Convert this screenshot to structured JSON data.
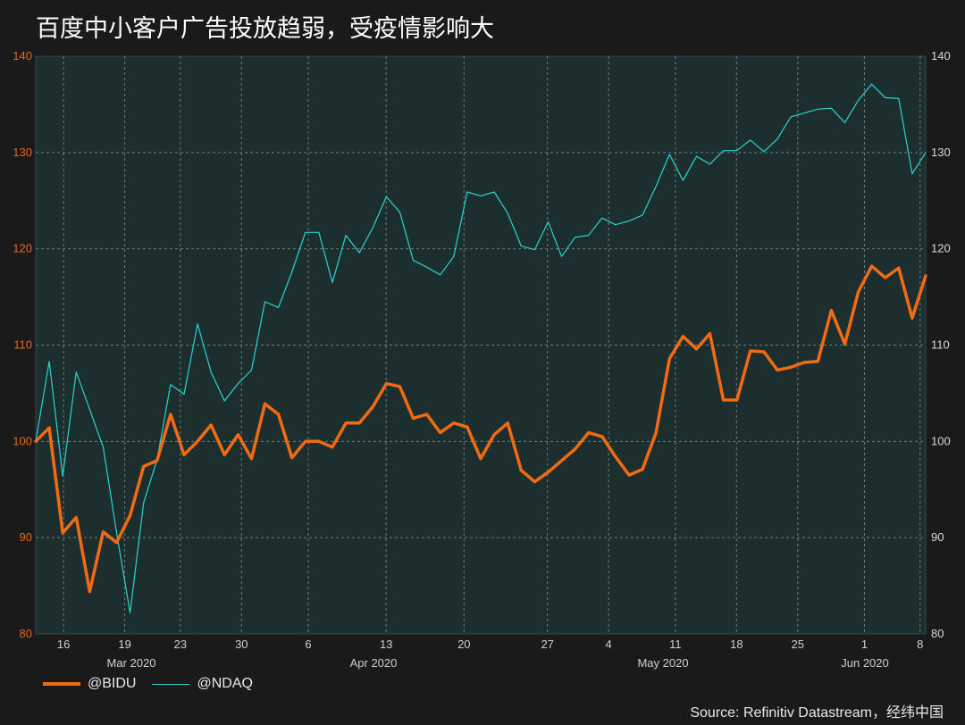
{
  "title": "百度中小客户广告投放趋弱，受疫情影响大",
  "source": "Source: Refinitiv Datastream，经纬中国",
  "colors": {
    "background": "#1a1a1a",
    "plot_bg": "#1d2e2e",
    "grid": "#8a9a9a",
    "bidu": "#f26a12",
    "ndaq": "#2ad4d4",
    "left_axis_text": "#e86a1a",
    "right_axis_text": "#d8d8d8"
  },
  "chart_data": {
    "type": "line",
    "ylim": [
      80,
      140
    ],
    "y_ticks": [
      80,
      90,
      100,
      110,
      120,
      130,
      140
    ],
    "x_tick_labels": [
      "16",
      "19",
      "23",
      "30",
      "6",
      "13",
      "20",
      "27",
      "4",
      "11",
      "18",
      "25",
      "1",
      "8"
    ],
    "month_labels": [
      "Mar 2020",
      "Apr 2020",
      "May 2020",
      "Jun 2020"
    ],
    "grid": true,
    "legend_position": "bottom-left",
    "series": [
      {
        "name": "@BIDU",
        "color": "#f26a12",
        "values": [
          100,
          101.4,
          90.5,
          92.1,
          84.4,
          90.6,
          89.5,
          92.3,
          97.4,
          98,
          102.8,
          98.6,
          100,
          101.7,
          98.6,
          100.7,
          98.2,
          103.9,
          102.8,
          98.3,
          100,
          100,
          99.4,
          101.9,
          101.9,
          103.6,
          106,
          105.7,
          102.4,
          102.8,
          100.9,
          101.9,
          101.5,
          98.2,
          100.7,
          101.9,
          97,
          95.8,
          96.8,
          98,
          99.2,
          100.9,
          100.5,
          98.4,
          96.5,
          97.1,
          100.9,
          108.6,
          110.9,
          109.6,
          111.2,
          104.3,
          104.3,
          109.4,
          109.3,
          107.4,
          107.7,
          108.2,
          108.3,
          113.6,
          110.1,
          115.5,
          118.2,
          117,
          118,
          112.8,
          117.2
        ]
      },
      {
        "name": "@NDAQ",
        "color": "#2ad4d4",
        "values": [
          100,
          108.3,
          96.4,
          107.2,
          103.3,
          99.4,
          90.5,
          82.2,
          93.6,
          98.1,
          105.9,
          104.9,
          112.2,
          107.2,
          104.2,
          106,
          107.4,
          114.5,
          113.9,
          117.6,
          121.7,
          121.7,
          116.5,
          121.4,
          119.6,
          122.2,
          125.4,
          123.8,
          118.8,
          118.1,
          117.3,
          119.2,
          125.9,
          125.5,
          125.9,
          123.7,
          120.3,
          119.9,
          122.8,
          119.2,
          121.2,
          121.4,
          123.2,
          122.5,
          122.9,
          123.5,
          126.5,
          129.8,
          127.1,
          129.6,
          128.8,
          130.2,
          130.2,
          131.3,
          130.1,
          131.4,
          133.7,
          134.1,
          134.5,
          134.6,
          133.1,
          135.4,
          137.1,
          135.7,
          135.6,
          127.8,
          130
        ]
      }
    ]
  }
}
